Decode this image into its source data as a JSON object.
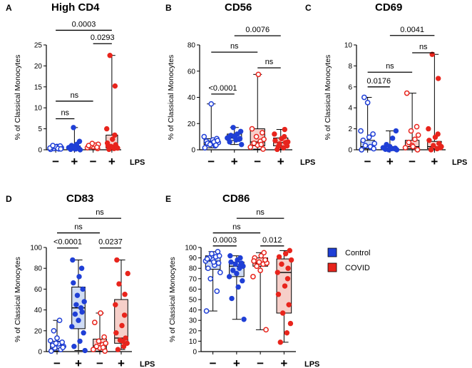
{
  "colors": {
    "control": "#1f3fd6",
    "control_fill": "#cfdcf4",
    "covid": "#e8241c",
    "covid_fill": "#f6cfc9",
    "axis": "#000000"
  },
  "legend": {
    "items": [
      {
        "label": "Control",
        "color": "#1f3fd6"
      },
      {
        "label": "COVID",
        "color": "#e8241c"
      }
    ]
  },
  "chart_data": [
    {
      "letter": "A",
      "type": "box",
      "title": "High CD4",
      "ylabel": "% of Classical Monocytes",
      "ylim": [
        0,
        25
      ],
      "yticks": [
        0,
        5,
        10,
        15,
        20,
        25
      ],
      "categories": [
        "−",
        "+",
        "−",
        "+"
      ],
      "x_suffix": "LPS",
      "groups": [
        "Control",
        "Control",
        "COVID",
        "COVID"
      ],
      "filled": [
        false,
        true,
        false,
        true
      ],
      "boxes": [
        {
          "min": 0.05,
          "q1": 0.2,
          "median": 0.4,
          "q3": 0.7,
          "max": 1.0
        },
        {
          "min": 0.0,
          "q1": 0.1,
          "median": 0.3,
          "q3": 0.9,
          "max": 5.3
        },
        {
          "min": 0.3,
          "q1": 0.5,
          "median": 0.8,
          "q3": 1.2,
          "max": 1.5
        },
        {
          "min": 0.1,
          "q1": 0.4,
          "median": 1.0,
          "q3": 3.5,
          "max": 22.5
        }
      ],
      "points": [
        [
          0.1,
          0.2,
          0.3,
          0.5,
          0.6,
          0.8,
          0.9,
          0.4,
          0.7,
          1.0,
          0.3,
          0.2
        ],
        [
          0.0,
          0.1,
          0.2,
          0.3,
          0.5,
          0.8,
          1.0,
          1.3,
          2.0,
          5.3,
          0.4,
          0.6,
          0.2
        ],
        [
          0.3,
          0.5,
          0.7,
          0.9,
          1.1,
          1.3,
          1.5,
          0.6,
          1.0
        ],
        [
          0.1,
          0.3,
          0.5,
          0.8,
          1.2,
          1.6,
          2.5,
          3.5,
          5.0,
          15.2,
          22.5,
          0.4,
          0.9
        ]
      ],
      "comparisons": [
        {
          "from": 0,
          "to": 3,
          "label": "0.0003",
          "y": 28.5
        },
        {
          "from": 2,
          "to": 3,
          "label": "0.0293",
          "y": 25.3
        },
        {
          "from": 0,
          "to": 2,
          "label": "ns",
          "y": 11.6
        },
        {
          "from": 0,
          "to": 1,
          "label": "ns",
          "y": 7.4
        }
      ]
    },
    {
      "letter": "B",
      "type": "box",
      "title": "CD56",
      "ylabel": "% of Classical Monocytes",
      "ylim": [
        0,
        80
      ],
      "yticks": [
        0,
        20,
        40,
        60,
        80
      ],
      "categories": [
        "−",
        "+",
        "−",
        "+"
      ],
      "x_suffix": "LPS",
      "groups": [
        "Control",
        "Control",
        "COVID",
        "COVID"
      ],
      "filled": [
        false,
        true,
        false,
        true
      ],
      "boxes": [
        {
          "min": 1.5,
          "q1": 4.0,
          "median": 6.5,
          "q3": 8.5,
          "max": 35.0
        },
        {
          "min": 4.0,
          "q1": 7.0,
          "median": 9.0,
          "q3": 12.0,
          "max": 17.0
        },
        {
          "min": 0.5,
          "q1": 3.0,
          "median": 6.0,
          "q3": 16.0,
          "max": 57.5
        },
        {
          "min": 0.3,
          "q1": 3.0,
          "median": 5.5,
          "q3": 9.0,
          "max": 15.5
        }
      ],
      "points": [
        [
          1.5,
          3.0,
          4.5,
          5.5,
          6.5,
          7.5,
          8.5,
          10.0,
          35.0,
          5.0,
          6.0,
          7.0,
          4.0,
          3.5
        ],
        [
          4.0,
          6.0,
          7.5,
          8.5,
          9.0,
          10.0,
          11.0,
          12.0,
          14.0,
          17.0,
          8.0,
          9.5,
          10.5
        ],
        [
          0.5,
          2.0,
          3.5,
          5.0,
          6.5,
          8.0,
          10.0,
          13.0,
          16.0,
          57.5,
          4.0
        ],
        [
          0.3,
          1.5,
          3.0,
          4.5,
          5.5,
          7.0,
          8.5,
          10.0,
          12.0,
          15.5,
          2.5,
          6.0
        ]
      ],
      "comparisons": [
        {
          "from": 1,
          "to": 3,
          "label": "0.0076",
          "y": 87.0
        },
        {
          "from": 0,
          "to": 2,
          "label": "ns",
          "y": 74.5
        },
        {
          "from": 2,
          "to": 3,
          "label": "ns",
          "y": 62.5
        },
        {
          "from": 0,
          "to": 1,
          "label": "<0.0001",
          "y": 42.5
        }
      ]
    },
    {
      "letter": "C",
      "type": "box",
      "title": "CD69",
      "ylabel": "% of Classical Monocytes",
      "ylim": [
        0,
        10
      ],
      "yticks": [
        0,
        2,
        4,
        6,
        8,
        10
      ],
      "categories": [
        "−",
        "+",
        "−",
        "+"
      ],
      "x_suffix": "LPS",
      "groups": [
        "Control",
        "Control",
        "COVID",
        "COVID"
      ],
      "filled": [
        false,
        true,
        false,
        true
      ],
      "boxes": [
        {
          "min": 0.0,
          "q1": 0.1,
          "median": 0.3,
          "q3": 0.9,
          "max": 5.0
        },
        {
          "min": 0.0,
          "q1": 0.0,
          "median": 0.1,
          "q3": 0.3,
          "max": 1.8
        },
        {
          "min": 0.0,
          "q1": 0.1,
          "median": 0.3,
          "q3": 0.9,
          "max": 5.4
        },
        {
          "min": 0.0,
          "q1": 0.1,
          "median": 0.3,
          "q3": 0.8,
          "max": 9.1
        }
      ],
      "points": [
        [
          0.0,
          0.2,
          0.4,
          0.6,
          0.9,
          1.2,
          1.5,
          1.8,
          4.5,
          5.0,
          0.3,
          0.1
        ],
        [
          0.0,
          0.05,
          0.1,
          0.15,
          0.2,
          0.3,
          0.5,
          1.1,
          1.8,
          0.0,
          0.1
        ],
        [
          0.0,
          0.2,
          0.4,
          0.7,
          1.0,
          1.4,
          1.8,
          2.2,
          5.4,
          0.3
        ],
        [
          0.0,
          0.1,
          0.2,
          0.4,
          0.6,
          0.9,
          1.2,
          1.5,
          2.0,
          6.8,
          9.1,
          0.3
        ]
      ],
      "comparisons": [
        {
          "from": 1,
          "to": 3,
          "label": "0.0041",
          "y": 10.9
        },
        {
          "from": 2,
          "to": 3,
          "label": "ns",
          "y": 9.25
        },
        {
          "from": 0,
          "to": 2,
          "label": "ns",
          "y": 7.4
        },
        {
          "from": 0,
          "to": 1,
          "label": "0.0176",
          "y": 6.0
        }
      ]
    },
    {
      "letter": "D",
      "type": "box",
      "title": "CD83",
      "ylabel": "% of Classical Monocytes",
      "ylim": [
        0,
        100
      ],
      "yticks": [
        0,
        20,
        40,
        60,
        80,
        100
      ],
      "categories": [
        "−",
        "+",
        "−",
        "+"
      ],
      "x_suffix": "LPS",
      "groups": [
        "Control",
        "Control",
        "COVID",
        "COVID"
      ],
      "filled": [
        false,
        true,
        false,
        true
      ],
      "boxes": [
        {
          "min": 0.5,
          "q1": 3.0,
          "median": 6.0,
          "q3": 10.0,
          "max": 30.0
        },
        {
          "min": 1.0,
          "q1": 22.0,
          "median": 42.0,
          "q3": 62.0,
          "max": 88.0
        },
        {
          "min": 0.5,
          "q1": 2.5,
          "median": 5.5,
          "q3": 12.0,
          "max": 37.0
        },
        {
          "min": 2.0,
          "q1": 8.0,
          "median": 13.0,
          "q3": 50.0,
          "max": 88.0
        }
      ],
      "points": [
        [
          0.5,
          2.0,
          3.5,
          5.0,
          6.0,
          7.5,
          9.0,
          10.5,
          13.0,
          20.0,
          30.0,
          4.0,
          8.0
        ],
        [
          1.0,
          5.0,
          10.0,
          18.0,
          24.0,
          30.0,
          36.0,
          42.0,
          48.0,
          54.0,
          60.0,
          66.0,
          72.0,
          80.0,
          88.0,
          38.0,
          45.0
        ],
        [
          0.5,
          2.0,
          3.5,
          5.0,
          6.5,
          8.0,
          10.0,
          14.0,
          28.0,
          37.0,
          4.0
        ],
        [
          2.0,
          5.0,
          8.0,
          11.0,
          13.0,
          18.0,
          25.0,
          35.0,
          45.0,
          55.0,
          65.0,
          75.0,
          88.0,
          10.0
        ]
      ],
      "comparisons": [
        {
          "from": 1,
          "to": 3,
          "label": "ns",
          "y": 128.0
        },
        {
          "from": 0,
          "to": 2,
          "label": "ns",
          "y": 114.0
        },
        {
          "from": 0,
          "to": 1,
          "label": "<0.0001",
          "y": 99.5
        },
        {
          "from": 2,
          "to": 3,
          "label": "0.0237",
          "y": 99.5
        }
      ]
    },
    {
      "letter": "E",
      "type": "box",
      "title": "CD86",
      "ylabel": "% of Classical Monocytes",
      "ylim": [
        0,
        100
      ],
      "yticks": [
        0,
        10,
        20,
        30,
        40,
        50,
        60,
        70,
        80,
        90,
        100
      ],
      "categories": [
        "−",
        "+",
        "−",
        "+"
      ],
      "x_suffix": "LPS",
      "groups": [
        "Control",
        "Control",
        "COVID",
        "COVID"
      ],
      "filled": [
        false,
        true,
        false,
        true
      ],
      "boxes": [
        {
          "min": 39.0,
          "q1": 79.0,
          "median": 87.0,
          "q3": 92.0,
          "max": 96.0
        },
        {
          "min": 31.0,
          "q1": 72.0,
          "median": 82.0,
          "q3": 86.0,
          "max": 92.0
        },
        {
          "min": 21.0,
          "q1": 82.0,
          "median": 85.0,
          "q3": 90.0,
          "max": 95.0
        },
        {
          "min": 9.0,
          "q1": 37.0,
          "median": 76.0,
          "q3": 89.0,
          "max": 97.0
        }
      ],
      "points": [
        [
          39.0,
          58.0,
          70.0,
          76.0,
          80.0,
          83.0,
          85.0,
          87.0,
          88.0,
          90.0,
          91.0,
          92.0,
          94.0,
          96.0,
          89.0,
          86.0
        ],
        [
          31.0,
          51.0,
          62.0,
          68.0,
          72.0,
          75.0,
          78.0,
          80.0,
          82.0,
          84.0,
          85.0,
          86.0,
          88.0,
          90.0,
          92.0,
          83.0
        ],
        [
          21.0,
          72.0,
          78.0,
          82.0,
          84.0,
          85.0,
          86.0,
          88.0,
          90.0,
          92.0,
          95.0,
          87.0
        ],
        [
          9.0,
          18.0,
          27.0,
          37.0,
          45.0,
          55.0,
          63.0,
          70.0,
          76.0,
          80.0,
          84.0,
          88.0,
          91.0,
          94.0,
          97.0
        ]
      ],
      "comparisons": [
        {
          "from": 1,
          "to": 3,
          "label": "ns",
          "y": 128.0
        },
        {
          "from": 0,
          "to": 2,
          "label": "ns",
          "y": 114.0
        },
        {
          "from": 0,
          "to": 1,
          "label": "0.0003",
          "y": 101.5
        },
        {
          "from": 2,
          "to": 3,
          "label": "0.012",
          "y": 101.5
        }
      ]
    }
  ]
}
